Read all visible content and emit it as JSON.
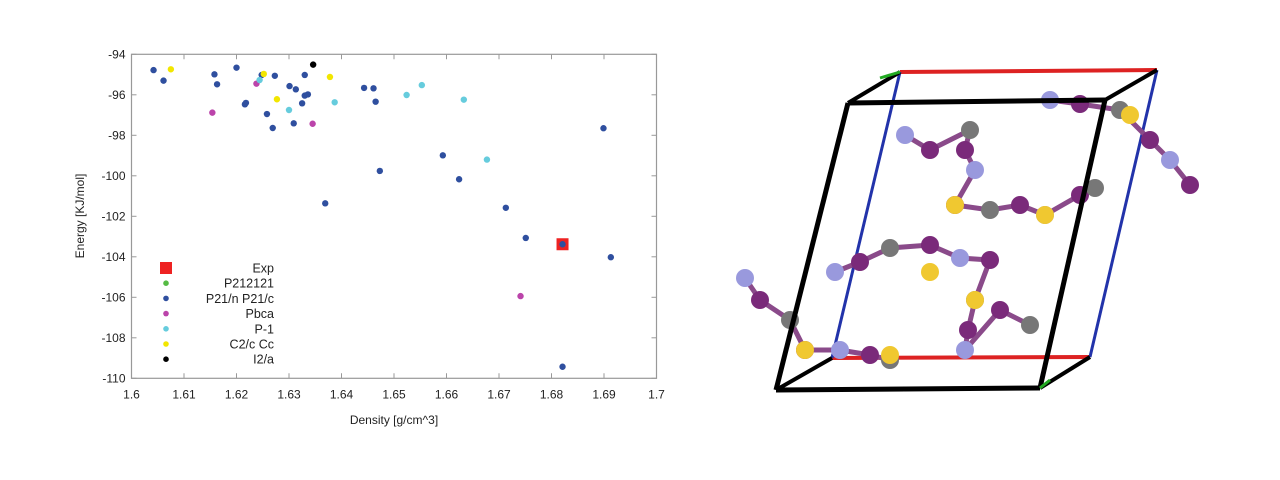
{
  "chart_data": {
    "type": "scatter",
    "xlabel": "Density [g/cm^3]",
    "ylabel": "Energy [KJ/mol]",
    "xlim": [
      1.6,
      1.7
    ],
    "ylim": [
      -110,
      -94
    ],
    "xticks": [
      1.6,
      1.61,
      1.62,
      1.63,
      1.64,
      1.65,
      1.66,
      1.67,
      1.68,
      1.69,
      1.7
    ],
    "xtick_labels": [
      "1.6",
      "1.61",
      "1.62",
      "1.63",
      "1.64",
      "1.65",
      "1.66",
      "1.67",
      "1.68",
      "1.69",
      "1.7"
    ],
    "yticks": [
      -94,
      -96,
      -98,
      -100,
      -102,
      -104,
      -106,
      -108,
      -110
    ],
    "ytick_labels": [
      "-94",
      "-96",
      "-98",
      "-100",
      "-102",
      "-104",
      "-106",
      "-108",
      "-110"
    ],
    "grid": false,
    "legend_placement": "bottom-left",
    "series": [
      {
        "name": "Exp",
        "color": "#ee2222",
        "marker": "square",
        "points": [
          [
            1.6821,
            -103.38
          ]
        ]
      },
      {
        "name": "P212121",
        "color": "#55bb44",
        "marker": "circle",
        "points": []
      },
      {
        "name": "P21/n P21/c",
        "color": "#2f4f9f",
        "marker": "circle",
        "points": [
          [
            1.6042,
            -94.78
          ],
          [
            1.6061,
            -95.3
          ],
          [
            1.6158,
            -94.99
          ],
          [
            1.6163,
            -95.48
          ],
          [
            1.62,
            -94.66
          ],
          [
            1.6216,
            -96.47
          ],
          [
            1.6218,
            -96.4
          ],
          [
            1.6248,
            -95.02
          ],
          [
            1.6273,
            -95.06
          ],
          [
            1.6301,
            -95.57
          ],
          [
            1.6313,
            -95.73
          ],
          [
            1.633,
            -95.02
          ],
          [
            1.633,
            -96.04
          ],
          [
            1.6336,
            -95.98
          ],
          [
            1.6325,
            -96.42
          ],
          [
            1.6258,
            -96.95
          ],
          [
            1.6269,
            -97.64
          ],
          [
            1.6309,
            -97.41
          ],
          [
            1.6443,
            -95.66
          ],
          [
            1.6461,
            -95.68
          ],
          [
            1.6465,
            -96.34
          ],
          [
            1.6473,
            -99.76
          ],
          [
            1.6899,
            -97.65
          ],
          [
            1.6593,
            -98.99
          ],
          [
            1.6624,
            -100.17
          ],
          [
            1.6369,
            -101.36
          ],
          [
            1.6713,
            -101.58
          ],
          [
            1.6751,
            -103.07
          ],
          [
            1.6821,
            -103.38
          ],
          [
            1.6913,
            -104.02
          ],
          [
            1.6821,
            -109.43
          ]
        ]
      },
      {
        "name": "Pbca",
        "color": "#bb44aa",
        "marker": "circle",
        "points": [
          [
            1.6154,
            -96.88
          ],
          [
            1.6238,
            -95.45
          ],
          [
            1.6345,
            -97.43
          ],
          [
            1.6741,
            -105.94
          ]
        ]
      },
      {
        "name": "P-1",
        "color": "#66ccdd",
        "marker": "circle",
        "points": [
          [
            1.6244,
            -95.27
          ],
          [
            1.63,
            -96.75
          ],
          [
            1.6387,
            -96.37
          ],
          [
            1.6524,
            -96.01
          ],
          [
            1.6553,
            -95.52
          ],
          [
            1.6633,
            -96.24
          ],
          [
            1.6677,
            -99.2
          ]
        ]
      },
      {
        "name": "C2/c Cc",
        "color": "#f2e600",
        "marker": "circle",
        "points": [
          [
            1.6075,
            -94.74
          ],
          [
            1.6252,
            -94.97
          ],
          [
            1.6277,
            -96.22
          ],
          [
            1.6378,
            -95.12
          ]
        ]
      },
      {
        "name": "I2/a",
        "color": "#000000",
        "marker": "circle",
        "points": [
          [
            1.6346,
            -94.51
          ]
        ]
      }
    ]
  },
  "crystal": {
    "edge_colors": {
      "a": "#dd2222",
      "b": "#2233aa",
      "c": "#22aa22",
      "other": "#000000"
    },
    "atom_colors": {
      "C": "#777777",
      "S": "#f0c830",
      "N": "#9999dd",
      "O": "#7a2a7a"
    }
  }
}
